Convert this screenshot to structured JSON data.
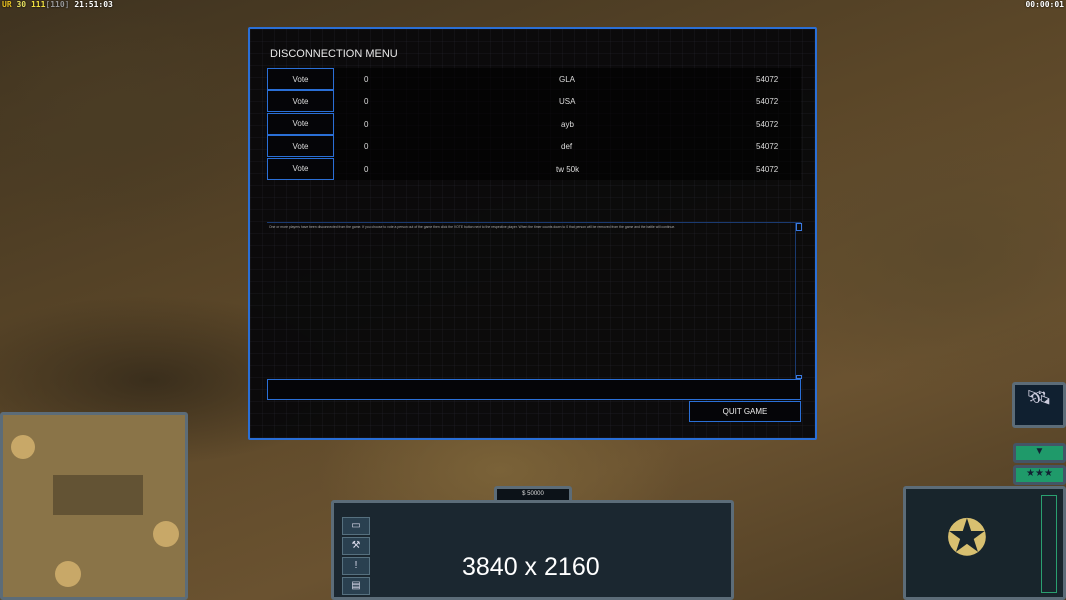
{
  "hud": {
    "status_prefix": "UR",
    "fps": "30",
    "val1": "111",
    "val2": "110",
    "clock": "21:51:03",
    "timer": "00:00:01"
  },
  "dialog": {
    "title": "DISCONNECTION MENU",
    "players": [
      {
        "vote_label": "Vote",
        "votes": "0",
        "name": "GLA",
        "ping": "54072"
      },
      {
        "vote_label": "Vote",
        "votes": "0",
        "name": "USA",
        "ping": "54072"
      },
      {
        "vote_label": "Vote",
        "votes": "0",
        "name": "ayb",
        "ping": "54072"
      },
      {
        "vote_label": "Vote",
        "votes": "0",
        "name": "def",
        "ping": "54072"
      },
      {
        "vote_label": "Vote",
        "votes": "0",
        "name": "tw 50k",
        "ping": "54072"
      }
    ],
    "message": "One or more players have been disconnected from the game. If you choose to vote a person out of the game then click the VOTE button next to the respective player. When the timer counts down to 0 that person will be removed from the game and the battle will continue.",
    "chat_value": "",
    "quit_label": "QUIT GAME"
  },
  "control_bar": {
    "money": "$ 50000",
    "overlay": "3840 x 2160",
    "side_buttons": [
      "options-icon",
      "wrench-icon",
      "alert-icon",
      "chat-icon"
    ]
  },
  "colors": {
    "accent": "#2a6fd6",
    "panel": "#1b2730",
    "green": "#1f9a6a"
  }
}
